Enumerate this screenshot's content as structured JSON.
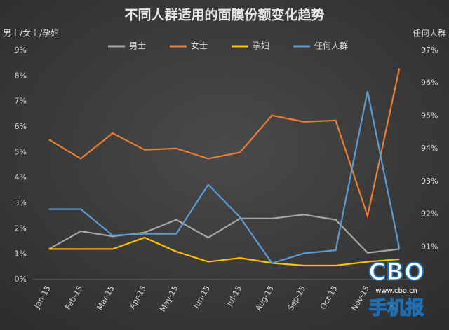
{
  "chart_data": {
    "type": "line",
    "title": "不同人群适用的面膜份额变化趋势",
    "y_label": "男士/女士/孕妇",
    "y2_label": "任何人群",
    "categories": [
      "Jan-15",
      "Feb-15",
      "Mar-15",
      "Apr-15",
      "May-15",
      "Jun-15",
      "Jul-15",
      "Aug-15",
      "Sep-15",
      "Oct-15",
      "Nov-15",
      null
    ],
    "series": [
      {
        "name": "男士",
        "color": "#a6a6a6",
        "values": [
          1.2,
          1.9,
          1.7,
          1.85,
          2.35,
          1.65,
          2.4,
          2.4,
          2.55,
          2.35,
          1.05,
          1.2
        ]
      },
      {
        "name": "女士",
        "color": "#ed7d31",
        "values": [
          5.5,
          4.75,
          5.75,
          5.1,
          5.15,
          4.75,
          5.0,
          6.45,
          6.2,
          6.25,
          2.5,
          8.3
        ]
      },
      {
        "name": "孕妇",
        "color": "#ffc000",
        "values": [
          1.2,
          1.2,
          1.2,
          1.65,
          1.1,
          0.7,
          0.85,
          0.65,
          0.55,
          0.55,
          0.7,
          0.8
        ]
      },
      {
        "name": "任何人群",
        "color": "#5b9bd5",
        "axis": "y2",
        "values": [
          92.15,
          92.15,
          91.35,
          91.4,
          91.4,
          92.9,
          91.9,
          90.5,
          90.8,
          90.9,
          95.75,
          90.95
        ]
      }
    ],
    "ylim": [
      0,
      9
    ],
    "yticks": [
      {
        "value": 0,
        "label": "0%"
      },
      {
        "value": 1,
        "label": "1%"
      },
      {
        "value": 2,
        "label": "2%"
      },
      {
        "value": 3,
        "label": "3%"
      },
      {
        "value": 4,
        "label": "4%"
      },
      {
        "value": 5,
        "label": "5%"
      },
      {
        "value": 6,
        "label": "6%"
      },
      {
        "value": 7,
        "label": "7%"
      },
      {
        "value": 8,
        "label": "8%"
      },
      {
        "value": 9,
        "label": "9%"
      }
    ],
    "y2lim": [
      90,
      97
    ],
    "y2ticks": [
      {
        "value": 91,
        "label": "91%"
      },
      {
        "value": 92,
        "label": "92%"
      },
      {
        "value": 93,
        "label": "93%"
      },
      {
        "value": 94,
        "label": "94%"
      },
      {
        "value": 95,
        "label": "95%"
      },
      {
        "value": 96,
        "label": "96%"
      },
      {
        "value": 97,
        "label": "97%"
      }
    ],
    "grid": false,
    "legend": "top"
  },
  "watermark": {
    "logo": "CBO",
    "url": "www.cbo.cn",
    "caption": "手机报"
  }
}
